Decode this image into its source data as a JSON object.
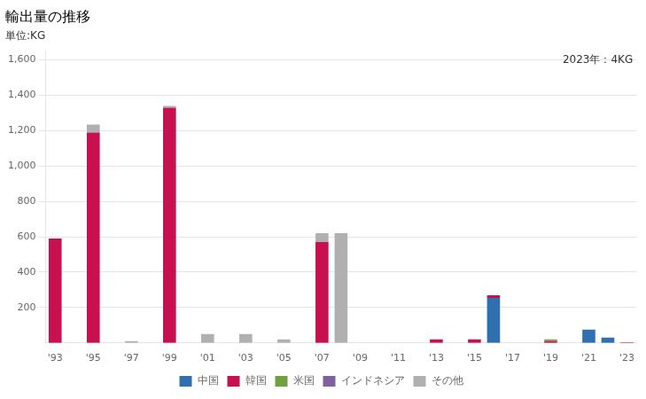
{
  "chart_data": {
    "type": "bar",
    "stacked": true,
    "title": "輸出量の推移",
    "subtitle": "単位:KG",
    "annotation": "2023年：4KG",
    "categories": [
      "'93",
      null,
      "'95",
      null,
      "'97",
      null,
      "'99",
      null,
      "'01",
      null,
      "'03",
      null,
      "'05",
      null,
      "'07",
      null,
      "'09",
      null,
      "'11",
      null,
      "'13",
      null,
      "'15",
      null,
      "'17",
      null,
      "'19",
      null,
      "'21",
      null,
      "'23"
    ],
    "series": [
      {
        "name": "中国",
        "color": "#3070b0",
        "values": [
          0,
          0,
          0,
          0,
          0,
          0,
          0,
          0,
          0,
          0,
          0,
          0,
          0,
          0,
          0,
          0,
          0,
          0,
          0,
          0,
          0,
          0,
          0,
          255,
          0,
          0,
          0,
          0,
          75,
          30,
          0
        ]
      },
      {
        "name": "韓国",
        "color": "#c81050",
        "values": [
          590,
          0,
          1190,
          0,
          0,
          0,
          1330,
          0,
          0,
          0,
          0,
          0,
          0,
          0,
          570,
          0,
          0,
          0,
          0,
          0,
          20,
          0,
          20,
          15,
          0,
          0,
          10,
          0,
          0,
          0,
          4
        ]
      },
      {
        "name": "米国",
        "color": "#70a040",
        "values": [
          0,
          0,
          0,
          0,
          0,
          0,
          0,
          0,
          0,
          0,
          0,
          0,
          0,
          0,
          0,
          0,
          0,
          0,
          0,
          0,
          0,
          0,
          0,
          0,
          0,
          0,
          10,
          0,
          0,
          0,
          0
        ]
      },
      {
        "name": "インドネシア",
        "color": "#8060a0",
        "values": [
          0,
          0,
          0,
          0,
          0,
          0,
          0,
          0,
          0,
          0,
          0,
          0,
          0,
          0,
          0,
          0,
          0,
          0,
          0,
          0,
          0,
          0,
          0,
          0,
          0,
          0,
          0,
          0,
          0,
          0,
          0
        ]
      },
      {
        "name": "その他",
        "color": "#b0b0b0",
        "values": [
          0,
          0,
          45,
          0,
          10,
          0,
          10,
          0,
          50,
          0,
          50,
          0,
          20,
          0,
          50,
          620,
          0,
          0,
          0,
          0,
          0,
          0,
          0,
          0,
          0,
          0,
          0,
          0,
          0,
          0,
          0
        ]
      }
    ],
    "ylim": [
      0,
      1650
    ],
    "yticks": [
      200,
      400,
      600,
      800,
      {
        "value": 1000,
        "label": "1,000"
      },
      {
        "value": 1200,
        "label": "1,200"
      },
      {
        "value": 1400,
        "label": "1,400"
      },
      {
        "value": 1600,
        "label": "1,600"
      }
    ],
    "grid": true,
    "legend": "bottom"
  }
}
